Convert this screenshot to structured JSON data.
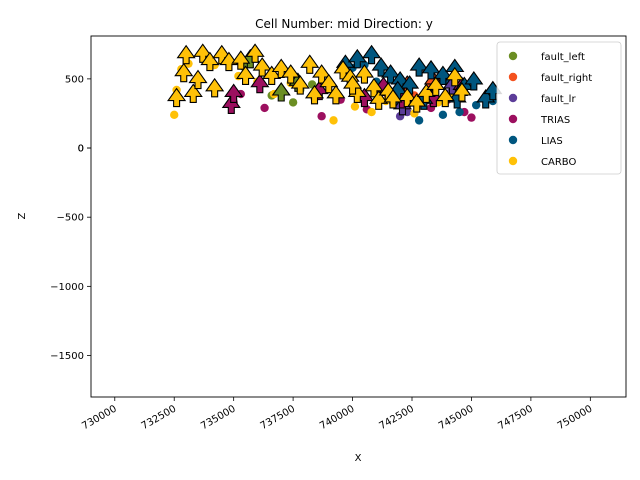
{
  "chart_data": {
    "type": "scatter",
    "title": "Cell Number: mid Direction: y",
    "xlabel": "X",
    "ylabel": "Z",
    "xlim": [
      729000,
      751500
    ],
    "ylim": [
      -1800,
      810
    ],
    "xticks": [
      730000,
      732500,
      735000,
      737500,
      740000,
      742500,
      745000,
      747500,
      750000
    ],
    "yticks": [
      500,
      0,
      -500,
      -1000,
      -1500
    ],
    "grid": false,
    "legend_position": "upper-right",
    "series": [
      {
        "name": "fault_left",
        "color": "#6b8e23",
        "points": [
          [
            735400,
            590
          ],
          [
            735600,
            610
          ],
          [
            736600,
            380
          ],
          [
            737500,
            330
          ],
          [
            737800,
            420
          ],
          [
            738300,
            460
          ]
        ],
        "arrows": [
          [
            735700,
            580
          ],
          [
            737000,
            340
          ],
          [
            737700,
            410
          ]
        ]
      },
      {
        "name": "fault_right",
        "color": "#f4511e",
        "points": [
          [
            742100,
            420
          ],
          [
            742600,
            380
          ],
          [
            743200,
            430
          ],
          [
            743500,
            460
          ]
        ],
        "arrows": [
          [
            742300,
            390
          ],
          [
            743400,
            420
          ]
        ]
      },
      {
        "name": "fault_lr",
        "color": "#5c3d99",
        "points": [
          [
            742000,
            230
          ],
          [
            742300,
            260
          ],
          [
            744100,
            400
          ]
        ],
        "arrows": [
          [
            742100,
            240
          ],
          [
            744200,
            390
          ]
        ]
      },
      {
        "name": "TRIAS",
        "color": "#9c0f5f",
        "points": [
          [
            735000,
            330
          ],
          [
            735300,
            390
          ],
          [
            736300,
            290
          ],
          [
            738700,
            230
          ],
          [
            739500,
            350
          ],
          [
            740600,
            280
          ],
          [
            741100,
            420
          ],
          [
            741500,
            380
          ],
          [
            742200,
            310
          ],
          [
            743300,
            290
          ],
          [
            744000,
            350
          ],
          [
            745000,
            220
          ],
          [
            744700,
            260
          ]
        ],
        "arrows": [
          [
            734900,
            250
          ],
          [
            735000,
            330
          ],
          [
            736100,
            400
          ],
          [
            738600,
            350
          ],
          [
            740500,
            300
          ],
          [
            741300,
            380
          ],
          [
            742100,
            290
          ],
          [
            743400,
            300
          ],
          [
            744600,
            380
          ]
        ]
      },
      {
        "name": "LIAS",
        "color": "#00567f",
        "points": [
          [
            740000,
            580
          ],
          [
            740500,
            600
          ],
          [
            741000,
            480
          ],
          [
            741700,
            330
          ],
          [
            742000,
            310
          ],
          [
            742800,
            200
          ],
          [
            743800,
            240
          ],
          [
            744500,
            260
          ],
          [
            745200,
            310
          ],
          [
            745900,
            340
          ],
          [
            744100,
            480
          ]
        ],
        "arrows": [
          [
            739700,
            540
          ],
          [
            740200,
            580
          ],
          [
            740800,
            610
          ],
          [
            741200,
            520
          ],
          [
            741600,
            470
          ],
          [
            742000,
            420
          ],
          [
            742400,
            390
          ],
          [
            742800,
            520
          ],
          [
            743300,
            500
          ],
          [
            743800,
            460
          ],
          [
            744300,
            510
          ],
          [
            744700,
            380
          ],
          [
            745100,
            420
          ],
          [
            745600,
            290
          ],
          [
            745900,
            350
          ],
          [
            741900,
            350
          ],
          [
            743000,
            280
          ],
          [
            744400,
            290
          ]
        ]
      },
      {
        "name": "CARBO",
        "color": "#ffc107",
        "points": [
          [
            732500,
            240
          ],
          [
            732600,
            420
          ],
          [
            732800,
            570
          ],
          [
            733100,
            610
          ],
          [
            734200,
            600
          ],
          [
            735200,
            520
          ],
          [
            736000,
            480
          ],
          [
            736700,
            390
          ],
          [
            737400,
            470
          ],
          [
            738400,
            360
          ],
          [
            739200,
            200
          ],
          [
            740100,
            300
          ],
          [
            740800,
            260
          ],
          [
            741400,
            340
          ],
          [
            742600,
            250
          ],
          [
            743600,
            330
          ],
          [
            744200,
            390
          ]
        ],
        "arrows": [
          [
            732600,
            300
          ],
          [
            732900,
            480
          ],
          [
            733000,
            610
          ],
          [
            733300,
            330
          ],
          [
            733500,
            430
          ],
          [
            733700,
            620
          ],
          [
            734000,
            560
          ],
          [
            734200,
            370
          ],
          [
            734500,
            610
          ],
          [
            734800,
            560
          ],
          [
            735300,
            570
          ],
          [
            735500,
            460
          ],
          [
            735900,
            620
          ],
          [
            736200,
            520
          ],
          [
            736600,
            460
          ],
          [
            737000,
            510
          ],
          [
            737400,
            470
          ],
          [
            737800,
            390
          ],
          [
            738200,
            540
          ],
          [
            738700,
            470
          ],
          [
            739000,
            400
          ],
          [
            739300,
            320
          ],
          [
            739600,
            500
          ],
          [
            739900,
            440
          ],
          [
            740200,
            330
          ],
          [
            740500,
            470
          ],
          [
            740900,
            370
          ],
          [
            741100,
            280
          ],
          [
            741500,
            340
          ],
          [
            742300,
            300
          ],
          [
            742700,
            260
          ],
          [
            743100,
            330
          ],
          [
            743500,
            380
          ],
          [
            743900,
            300
          ],
          [
            744300,
            450
          ],
          [
            744600,
            340
          ],
          [
            738400,
            320
          ],
          [
            740000,
            390
          ],
          [
            741700,
            290
          ]
        ]
      }
    ]
  }
}
